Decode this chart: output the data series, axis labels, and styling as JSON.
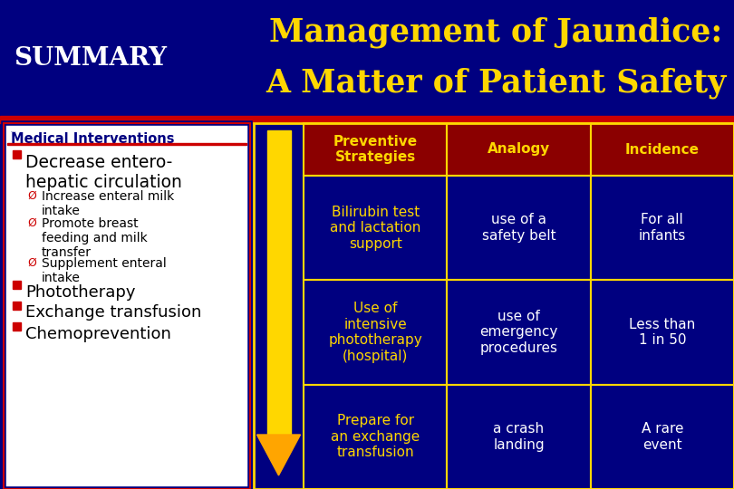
{
  "title_left": "SUMMARY",
  "title_right_line1": "Management of Jaundice:",
  "title_right_line2": "A Matter of Patient Safety",
  "bg_navy": "#000080",
  "bg_white": "#FFFFFF",
  "header_row_color": "#8B0000",
  "data_row_color": "#000080",
  "header_text_color": "#FFD700",
  "cell_text_col0_color": "#FFD700",
  "cell_text_other_color": "#FFFFFF",
  "left_title_color": "#000080",
  "bullet_color": "#CC0000",
  "red_sep_color": "#CC0000",
  "yellow_border": "#FFD700",
  "arrow_color_top": "#FFD700",
  "arrow_color_bottom": "#FFA500",
  "col_headers": [
    "Preventive\nStrategies",
    "Analogy",
    "Incidence"
  ],
  "rows": [
    [
      "Bilirubin test\nand lactation\nsupport",
      "use of a\nsafety belt",
      "For all\ninfants"
    ],
    [
      "Use of\nintensive\nphototherapy\n(hospital)",
      "use of\nemergency\nprocedures",
      "Less than\n1 in 50"
    ],
    [
      "Prepare for\nan exchange\ntransfusion",
      "a crash\nlanding",
      "A rare\nevent"
    ]
  ],
  "left_bullets": [
    {
      "text": "Decrease entero-\nhepatic circulation",
      "level": 0,
      "bold": true
    },
    {
      "text": "Increase enteral milk\nintake",
      "level": 1
    },
    {
      "text": "Promote breast\nfeeding and milk\ntransfer",
      "level": 1
    },
    {
      "text": "Supplement enteral\nintake",
      "level": 1
    },
    {
      "text": "Phototherapy",
      "level": 0,
      "bold": false
    },
    {
      "text": "Exchange transfusion",
      "level": 0,
      "bold": false
    },
    {
      "text": "Chemoprevention",
      "level": 0,
      "bold": false
    }
  ]
}
